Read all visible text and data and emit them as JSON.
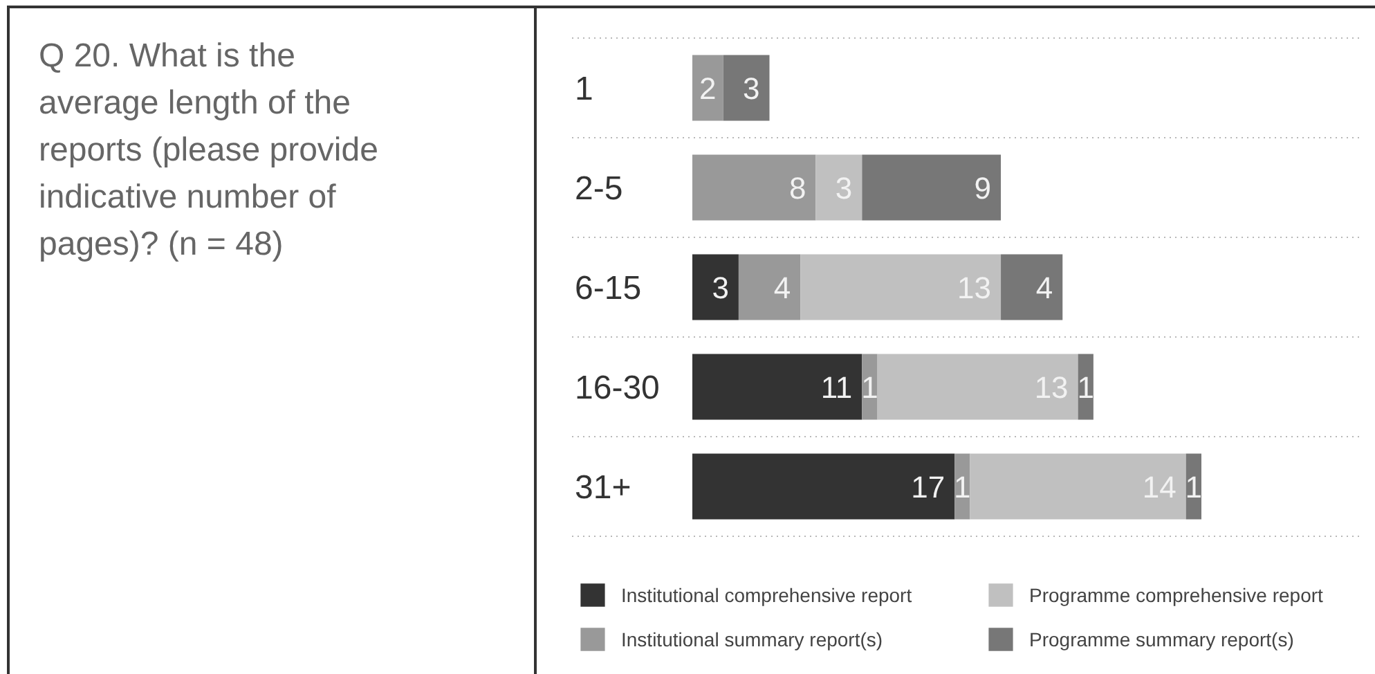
{
  "chart_data": {
    "type": "bar",
    "orientation": "horizontal",
    "stacked": true,
    "title": "Q 20. What is the average length of the reports (please provide indicative number of pages)? (n = 48)",
    "categories": [
      "1",
      "2-5",
      "6-15",
      "16-30",
      "31+"
    ],
    "series": [
      {
        "name": "Institutional comprehensive report",
        "color": "#333333",
        "values": [
          null,
          null,
          3,
          11,
          17
        ]
      },
      {
        "name": "Institutional summary report(s)",
        "color": "#999999",
        "values": [
          2,
          8,
          4,
          1,
          1
        ]
      },
      {
        "name": "Programme comprehensive report",
        "color": "#c0c0c0",
        "values": [
          null,
          3,
          13,
          13,
          14
        ]
      },
      {
        "name": "Programme summary report(s)",
        "color": "#777777",
        "values": [
          3,
          9,
          4,
          1,
          1
        ]
      }
    ],
    "data_labels": true,
    "grid": "y",
    "legend": "bottom",
    "tick_labels": "y"
  }
}
